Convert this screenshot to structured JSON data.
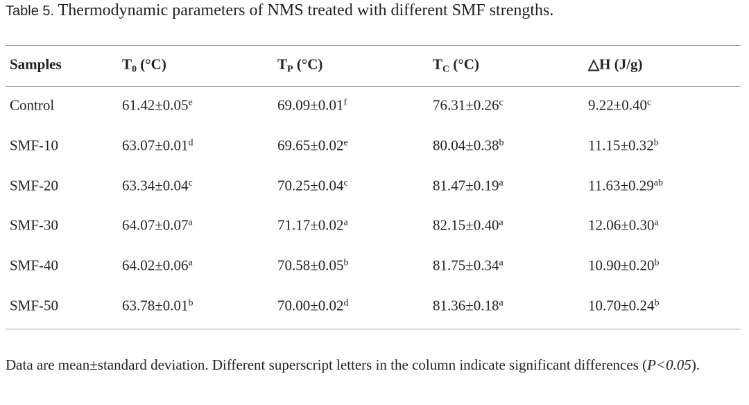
{
  "caption": {
    "label": "Table 5.",
    "text": "Thermodynamic parameters of NMS treated with different SMF strengths."
  },
  "table": {
    "header": [
      {
        "text": "Samples"
      },
      {
        "text": "T",
        "sub": "0",
        "unit": "(°C)"
      },
      {
        "text": "T",
        "sub": "P",
        "unit": "(°C)"
      },
      {
        "text": "T",
        "sub": "C",
        "unit": "(°C)"
      },
      {
        "text": "△H (J/g)"
      }
    ],
    "rows": [
      [
        "Control",
        {
          "value": "61.42±0.05",
          "sup": "e"
        },
        {
          "value": "69.09±0.01",
          "sup": "f"
        },
        {
          "value": "76.31±0.26",
          "sup": "c"
        },
        {
          "value": "9.22±0.40",
          "sup": "c"
        }
      ],
      [
        "SMF-10",
        {
          "value": "63.07±0.01",
          "sup": "d"
        },
        {
          "value": "69.65±0.02",
          "sup": "e"
        },
        {
          "value": "80.04±0.38",
          "sup": "b"
        },
        {
          "value": "11.15±0.32",
          "sup": "b"
        }
      ],
      [
        "SMF-20",
        {
          "value": "63.34±0.04",
          "sup": "c"
        },
        {
          "value": "70.25±0.04",
          "sup": "c"
        },
        {
          "value": "81.47±0.19",
          "sup": "a"
        },
        {
          "value": "11.63±0.29",
          "sup": "ab"
        }
      ],
      [
        "SMF-30",
        {
          "value": "64.07±0.07",
          "sup": "a"
        },
        {
          "value": "71.17±0.02",
          "sup": "a"
        },
        {
          "value": "82.15±0.40",
          "sup": "a"
        },
        {
          "value": "12.06±0.30",
          "sup": "a"
        }
      ],
      [
        "SMF-40",
        {
          "value": "64.02±0.06",
          "sup": "a"
        },
        {
          "value": "70.58±0.05",
          "sup": "b"
        },
        {
          "value": "81.75±0.34",
          "sup": "a"
        },
        {
          "value": "10.90±0.20",
          "sup": "b"
        }
      ],
      [
        "SMF-50",
        {
          "value": "63.78±0.01",
          "sup": "b"
        },
        {
          "value": "70.00±0.02",
          "sup": "d"
        },
        {
          "value": "81.36±0.18",
          "sup": "a"
        },
        {
          "value": "10.70±0.24",
          "sup": "b"
        }
      ]
    ]
  },
  "note": {
    "before": "Data are mean±standard deviation. Different superscript letters in the column indicate significant differences (",
    "italic": "P<0.05",
    "after": ")."
  }
}
